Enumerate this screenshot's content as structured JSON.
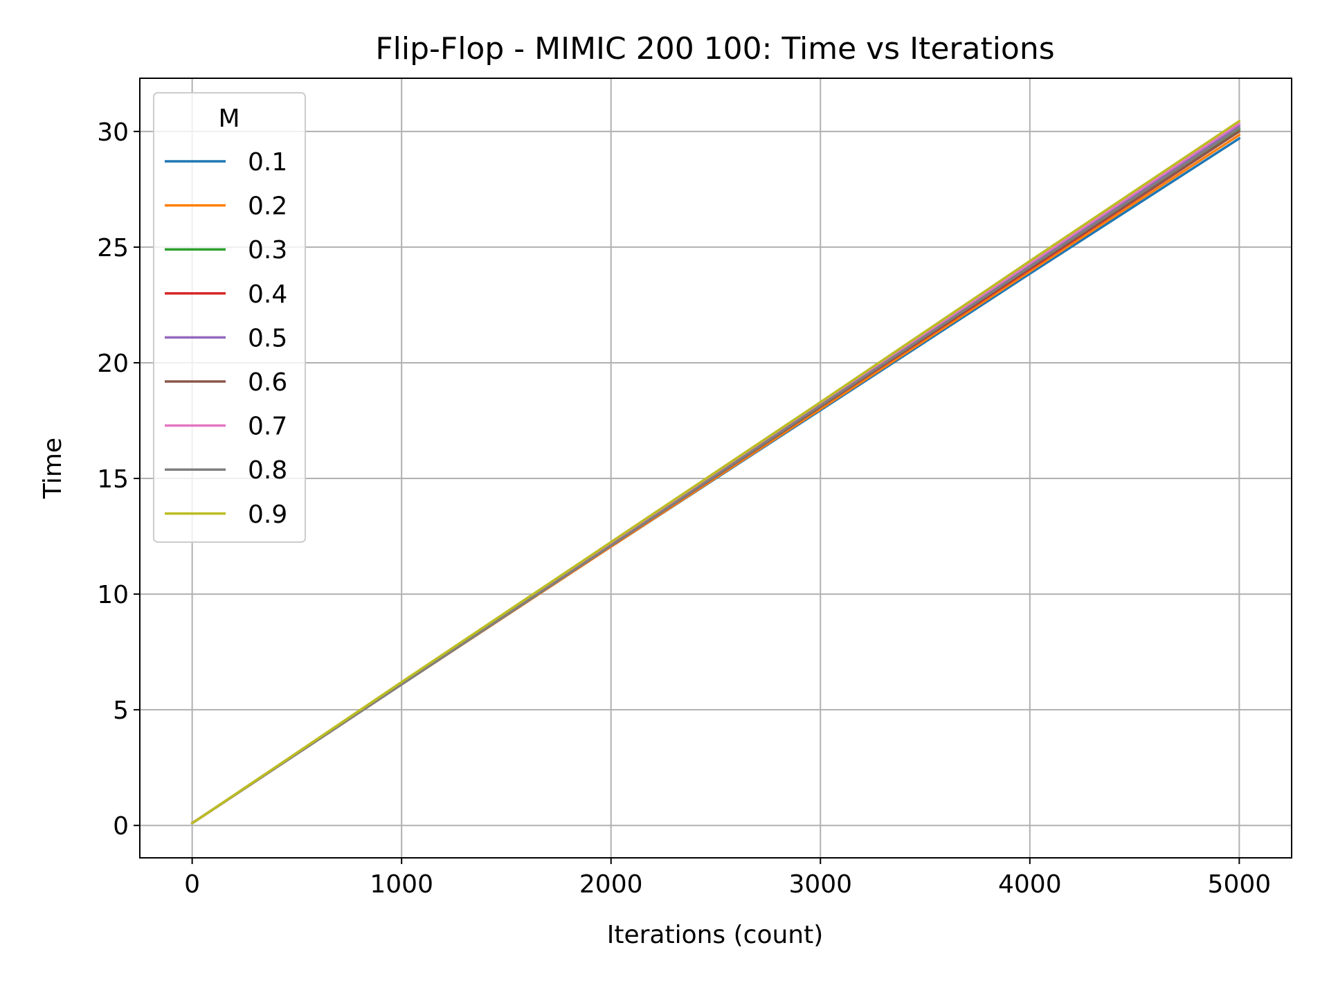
{
  "chart_data": {
    "type": "line",
    "title": "Flip-Flop - MIMIC 200 100: Time vs Iterations",
    "xlabel": "Iterations (count)",
    "ylabel": "Time",
    "xlim": [
      -250,
      5250
    ],
    "ylim": [
      -1.4,
      32.3
    ],
    "xticks": [
      0,
      1000,
      2000,
      3000,
      4000,
      5000
    ],
    "yticks": [
      0,
      5,
      10,
      15,
      20,
      25,
      30
    ],
    "grid": true,
    "legend": {
      "title": "M",
      "placement": "upper-left"
    },
    "x": [
      0,
      50,
      1000,
      2000,
      3000,
      4000,
      5000
    ],
    "series": [
      {
        "name": "0.1",
        "color": "#1f77b4",
        "values": [
          0.1,
          0.4,
          6.1,
          12.05,
          17.95,
          23.85,
          29.7
        ]
      },
      {
        "name": "0.2",
        "color": "#ff7f0e",
        "values": [
          0.1,
          0.4,
          6.1,
          12.05,
          18.0,
          23.95,
          29.85
        ]
      },
      {
        "name": "0.3",
        "color": "#2ca02c",
        "values": [
          0.1,
          0.4,
          6.15,
          12.15,
          18.15,
          24.1,
          30.1
        ]
      },
      {
        "name": "0.4",
        "color": "#d62728",
        "values": [
          0.1,
          0.4,
          6.1,
          12.1,
          18.1,
          24.05,
          30.0
        ]
      },
      {
        "name": "0.5",
        "color": "#9467bd",
        "values": [
          0.1,
          0.4,
          6.15,
          12.15,
          18.2,
          24.2,
          30.25
        ]
      },
      {
        "name": "0.6",
        "color": "#8c564b",
        "values": [
          0.1,
          0.4,
          6.1,
          12.1,
          18.1,
          24.1,
          30.0
        ]
      },
      {
        "name": "0.7",
        "color": "#e377c2",
        "values": [
          0.1,
          0.4,
          6.15,
          12.2,
          18.25,
          24.3,
          30.35
        ]
      },
      {
        "name": "0.8",
        "color": "#7f7f7f",
        "values": [
          0.1,
          0.4,
          6.1,
          12.1,
          18.15,
          24.15,
          30.15
        ]
      },
      {
        "name": "0.9",
        "color": "#bcbd22",
        "values": [
          0.1,
          0.4,
          6.2,
          12.25,
          18.3,
          24.4,
          30.45
        ]
      }
    ]
  }
}
